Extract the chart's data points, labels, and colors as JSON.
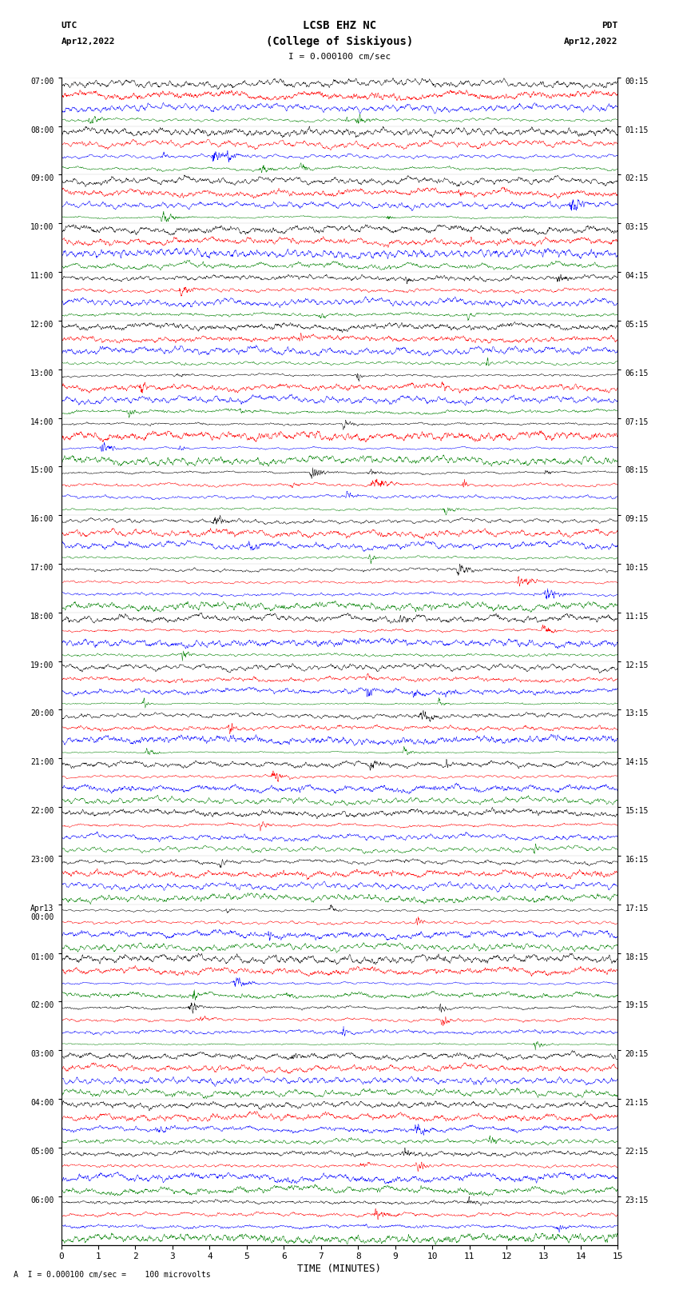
{
  "title_line1": "LCSB EHZ NC",
  "title_line2": "(College of Siskiyous)",
  "scale_text": "I = 0.000100 cm/sec",
  "bottom_text": "A  I = 0.000100 cm/sec =    100 microvolts",
  "utc_label": "UTC",
  "utc_date": "Apr12,2022",
  "pdt_label": "PDT",
  "pdt_date": "Apr12,2022",
  "xlabel": "TIME (MINUTES)",
  "left_times": [
    "07:00",
    "08:00",
    "09:00",
    "10:00",
    "11:00",
    "12:00",
    "13:00",
    "14:00",
    "15:00",
    "16:00",
    "17:00",
    "18:00",
    "19:00",
    "20:00",
    "21:00",
    "22:00",
    "23:00",
    "00:00",
    "01:00",
    "02:00",
    "03:00",
    "04:00",
    "05:00",
    "06:00"
  ],
  "right_times": [
    "00:15",
    "01:15",
    "02:15",
    "03:15",
    "04:15",
    "05:15",
    "06:15",
    "07:15",
    "08:15",
    "09:15",
    "10:15",
    "11:15",
    "12:15",
    "13:15",
    "14:15",
    "15:15",
    "16:15",
    "17:15",
    "18:15",
    "19:15",
    "20:15",
    "21:15",
    "22:15",
    "23:15"
  ],
  "colors": [
    "black",
    "red",
    "blue",
    "green"
  ],
  "n_hours": 24,
  "traces_per_hour": 4,
  "bg_color": "white",
  "fig_width": 8.5,
  "fig_height": 16.13,
  "xlim": [
    0,
    15
  ],
  "xticks": [
    0,
    1,
    2,
    3,
    4,
    5,
    6,
    7,
    8,
    9,
    10,
    11,
    12,
    13,
    14,
    15
  ],
  "seed": 42,
  "apr13_hour_idx": 17
}
